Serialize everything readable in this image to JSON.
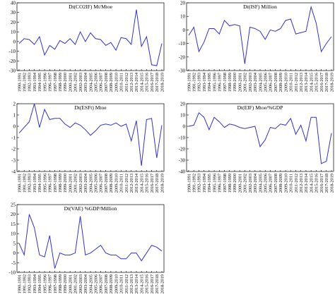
{
  "chart_data": [
    {
      "type": "line",
      "title": "Dt(CO2IF) Mt/Mtoe",
      "categories": [
        "1990-1991",
        "1991-1992",
        "1992-1993",
        "1993-1994",
        "1994-1995",
        "1995-1996",
        "1996-1997",
        "1997-1998",
        "1998-1999",
        "1999-2000",
        "2000-2001",
        "2001-2002",
        "2002-2003",
        "2003-2004",
        "2004-2005",
        "2005-2006",
        "2006-2007",
        "2007-2008",
        "2008-2009",
        "2009-2010",
        "2010-2011",
        "2011-2012",
        "2012-2013",
        "2013-2014",
        "2014-2015",
        "2015-2016",
        "2016-2017",
        "2017-2018",
        "2018-2019"
      ],
      "values": [
        -2,
        3,
        2,
        -3,
        5,
        -14,
        -4,
        -8,
        1,
        -2,
        3,
        -3,
        10,
        0,
        9,
        3,
        2,
        -4,
        -1,
        -9,
        4,
        3,
        -3,
        33,
        -5,
        5,
        -24,
        -25,
        -2
      ],
      "color": "#3333cc",
      "ylim": [
        -30,
        40
      ],
      "yticks": [
        -30,
        -20,
        -10,
        0,
        10,
        20,
        30,
        40
      ]
    },
    {
      "type": "line",
      "title": "Dt(ISF) Million",
      "categories": [
        "1990-1991",
        "1991-1992",
        "1992-1993",
        "1993-1994",
        "1994-1995",
        "1995-1996",
        "1996-1997",
        "1997-1998",
        "1998-1999",
        "1999-2000",
        "2000-2001",
        "2001-2002",
        "2002-2003",
        "2003-2004",
        "2004-2005",
        "2005-2006",
        "2006-2007",
        "2007-2008",
        "2008-2009",
        "2009-2010",
        "2010-2011",
        "2011-2012",
        "2012-2013",
        "2013-2014",
        "2014-2015",
        "2015-2016",
        "2016-2017",
        "2017-2018",
        "2018-2019"
      ],
      "values": [
        -4,
        2,
        -16,
        -9,
        1,
        1,
        -3,
        7,
        3,
        4,
        3,
        -25,
        2,
        1,
        -1,
        -7,
        0,
        -1,
        1,
        7,
        8,
        -3,
        -2,
        -1,
        17,
        5,
        -16,
        -10,
        -5
      ],
      "color": "#3333cc",
      "ylim": [
        -30,
        20
      ],
      "yticks": [
        -30,
        -20,
        -10,
        0,
        10,
        20
      ]
    },
    {
      "type": "line",
      "title": "Dt(ESFt) Mtoe",
      "categories": [
        "1990-1991",
        "1991-1992",
        "1992-1993",
        "1993-1994",
        "1994-1995",
        "1995-1996",
        "1996-1997",
        "1997-1998",
        "1998-1999",
        "1999-2000",
        "2000-2001",
        "2001-2002",
        "2002-2003",
        "2003-2004",
        "2004-2005",
        "2005-2006",
        "2006-2007",
        "2007-2008",
        "2008-2009",
        "2009-2010",
        "2010-2011",
        "2011-2012",
        "2012-2013",
        "2013-2014",
        "2014-2015",
        "2015-2016",
        "2016-2017",
        "2017-2018",
        "2018-2019"
      ],
      "values": [
        -0.6,
        -0.1,
        0.4,
        2.0,
        -0.1,
        1.5,
        0.6,
        0.7,
        0.7,
        0.2,
        -0.1,
        0.3,
        0.1,
        -0.3,
        -0.8,
        -0.4,
        0.1,
        0.2,
        0.1,
        0.3,
        0.0,
        0.2,
        -1.3,
        0.5,
        -3.5,
        0.6,
        0.7,
        -2.8,
        0.1
      ],
      "color": "#3333cc",
      "ylim": [
        -4,
        2
      ],
      "yticks": [
        -4,
        -3,
        -2,
        -1,
        0,
        1,
        2
      ]
    },
    {
      "type": "line",
      "title": "Dt(EIF) Mtoe/%GDP",
      "categories": [
        "1990-1991",
        "1991-1992",
        "1992-1993",
        "1993-1994",
        "1994-1995",
        "1995-1996",
        "1996-1997",
        "1997-1998",
        "1998-1999",
        "1999-2000",
        "2000-2001",
        "2001-2002",
        "2002-2003",
        "2003-2004",
        "2004-2005",
        "2005-2006",
        "2006-2007",
        "2007-2008",
        "2008-2009",
        "2009-2010",
        "2010-2011",
        "2011-2012",
        "2012-2013",
        "2013-2014",
        "2014-2015",
        "2015-2016",
        "2016-2017",
        "2017-2018",
        "2018-2019"
      ],
      "values": [
        0,
        1,
        12,
        8,
        -3,
        8,
        4,
        -1,
        2,
        1,
        -1,
        -2,
        -1,
        0,
        -18,
        -12,
        -1,
        -2,
        2,
        1,
        7,
        -7,
        1,
        -13,
        8,
        8,
        -33,
        -31,
        -6
      ],
      "color": "#3333cc",
      "ylim": [
        -40,
        20
      ],
      "yticks": [
        -40,
        -30,
        -20,
        -10,
        0,
        10,
        20
      ]
    },
    {
      "type": "line",
      "title": "Dt(VAE) %GDP/Million",
      "categories": [
        "1990-1991",
        "1991-1992",
        "1992-1993",
        "1993-1994",
        "1994-1995",
        "1995-1996",
        "1996-1997",
        "1997-1998",
        "1998-1999",
        "1999-2000",
        "2000-2001",
        "2001-2002",
        "2002-2003",
        "2003-2004",
        "2004-2005",
        "2005-2006",
        "2006-2007",
        "2007-2008",
        "2008-2009",
        "2009-2010",
        "2010-2011",
        "2011-2012",
        "2012-2013",
        "2013-2014",
        "2014-2015",
        "2015-2016",
        "2016-2017",
        "2017-2018",
        "2018-2019"
      ],
      "values": [
        5,
        -1,
        20,
        13,
        -1,
        -2,
        9,
        -8,
        0,
        -1,
        -1,
        0,
        19,
        -1,
        0,
        2,
        4,
        0,
        -1,
        -1,
        -3,
        -3,
        0,
        0,
        -4,
        0,
        4,
        3,
        1
      ],
      "color": "#3333cc",
      "ylim": [
        -10,
        25
      ],
      "yticks": [
        -10,
        -5,
        0,
        5,
        10,
        15,
        20,
        25
      ]
    }
  ]
}
